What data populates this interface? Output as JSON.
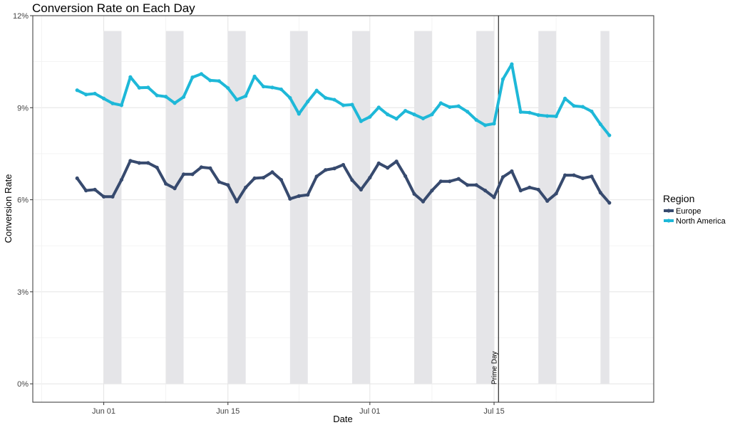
{
  "chart_data": {
    "type": "line",
    "title": "Conversion Rate on Each Day",
    "xlabel": "Date",
    "ylabel": "Conversion Rate",
    "x_range": [
      "2019-05-24",
      "2019-08-02"
    ],
    "ylim": [
      -0.006,
      0.12
    ],
    "y_ticks": [
      0,
      0.03,
      0.06,
      0.09,
      0.12
    ],
    "y_tick_labels": [
      "0%",
      "3%",
      "6%",
      "9%",
      "12%"
    ],
    "x_ticks": [
      "2019-06-01",
      "2019-06-15",
      "2019-07-01",
      "2019-07-15"
    ],
    "x_tick_labels": [
      "Jun 01",
      "Jun 15",
      "Jul 01",
      "Jul 15"
    ],
    "grid": true,
    "legend": {
      "title": "Region",
      "position": "right"
    },
    "weekend_bands": {
      "color": "#e5e5e8",
      "ymax": 0.115,
      "ranges": [
        [
          "2019-06-01",
          "2019-06-03"
        ],
        [
          "2019-06-08",
          "2019-06-10"
        ],
        [
          "2019-06-15",
          "2019-06-17"
        ],
        [
          "2019-06-22",
          "2019-06-24"
        ],
        [
          "2019-06-29",
          "2019-07-01"
        ],
        [
          "2019-07-06",
          "2019-07-08"
        ],
        [
          "2019-07-13",
          "2019-07-15"
        ],
        [
          "2019-07-20",
          "2019-07-22"
        ],
        [
          "2019-07-27",
          "2019-07-28"
        ]
      ]
    },
    "annotation": {
      "label": "Prime Day",
      "date": "2019-07-15"
    },
    "dates": [
      "2019-05-29",
      "2019-05-30",
      "2019-05-31",
      "2019-06-01",
      "2019-06-02",
      "2019-06-03",
      "2019-06-04",
      "2019-06-05",
      "2019-06-06",
      "2019-06-07",
      "2019-06-08",
      "2019-06-09",
      "2019-06-10",
      "2019-06-11",
      "2019-06-12",
      "2019-06-13",
      "2019-06-14",
      "2019-06-15",
      "2019-06-16",
      "2019-06-17",
      "2019-06-18",
      "2019-06-19",
      "2019-06-20",
      "2019-06-21",
      "2019-06-22",
      "2019-06-23",
      "2019-06-24",
      "2019-06-25",
      "2019-06-26",
      "2019-06-27",
      "2019-06-28",
      "2019-06-29",
      "2019-06-30",
      "2019-07-01",
      "2019-07-02",
      "2019-07-03",
      "2019-07-04",
      "2019-07-05",
      "2019-07-06",
      "2019-07-07",
      "2019-07-08",
      "2019-07-09",
      "2019-07-10",
      "2019-07-11",
      "2019-07-12",
      "2019-07-13",
      "2019-07-14",
      "2019-07-15",
      "2019-07-16",
      "2019-07-17",
      "2019-07-18",
      "2019-07-19",
      "2019-07-20",
      "2019-07-21",
      "2019-07-22",
      "2019-07-23",
      "2019-07-24",
      "2019-07-25",
      "2019-07-26",
      "2019-07-27",
      "2019-07-28"
    ],
    "series": [
      {
        "name": "Europe",
        "color": "#374a6e",
        "values": [
          0.067,
          0.063,
          0.0633,
          0.061,
          0.061,
          0.0665,
          0.0727,
          0.072,
          0.072,
          0.0705,
          0.0652,
          0.0637,
          0.0683,
          0.0683,
          0.0706,
          0.0703,
          0.0658,
          0.0648,
          0.0594,
          0.064,
          0.067,
          0.0672,
          0.069,
          0.0665,
          0.0603,
          0.0612,
          0.0616,
          0.0676,
          0.0697,
          0.0702,
          0.0714,
          0.0664,
          0.0633,
          0.0672,
          0.0719,
          0.0704,
          0.0725,
          0.0677,
          0.0619,
          0.0594,
          0.063,
          0.066,
          0.066,
          0.0668,
          0.0648,
          0.0648,
          0.063,
          0.0608,
          0.0674,
          0.0693,
          0.063,
          0.064,
          0.0633,
          0.0596,
          0.062,
          0.068,
          0.068,
          0.067,
          0.0676,
          0.0623,
          0.059
        ]
      },
      {
        "name": "North America",
        "color": "#1eb8d8",
        "values": [
          0.0957,
          0.0943,
          0.0946,
          0.093,
          0.0914,
          0.0908,
          0.1,
          0.0965,
          0.0966,
          0.094,
          0.0936,
          0.0915,
          0.0935,
          0.0999,
          0.101,
          0.0989,
          0.0987,
          0.0964,
          0.0926,
          0.0938,
          0.1002,
          0.0969,
          0.0966,
          0.096,
          0.0932,
          0.088,
          0.092,
          0.0956,
          0.0932,
          0.0926,
          0.0908,
          0.091,
          0.0856,
          0.087,
          0.0901,
          0.0878,
          0.0864,
          0.089,
          0.0878,
          0.0865,
          0.0878,
          0.0915,
          0.0902,
          0.0905,
          0.0887,
          0.086,
          0.0843,
          0.0848,
          0.0993,
          0.1042,
          0.0886,
          0.0884,
          0.0876,
          0.0873,
          0.0872,
          0.093,
          0.0906,
          0.0903,
          0.0888,
          0.0846,
          0.081
        ]
      }
    ]
  }
}
